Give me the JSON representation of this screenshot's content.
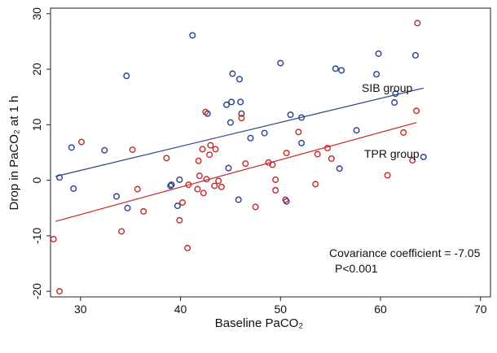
{
  "chart_data": {
    "type": "scatter",
    "xlabel": "Baseline PaCO₂",
    "ylabel": "Drop in PaCO₂ at 1 h",
    "xlim": [
      27,
      71
    ],
    "ylim": [
      -21,
      31
    ],
    "x_ticks": [
      30,
      40,
      50,
      60,
      70
    ],
    "y_ticks": [
      -20,
      -10,
      0,
      10,
      20,
      30
    ],
    "grid": false,
    "series": [
      {
        "name": "SIB group",
        "color": "#2a3f8f",
        "points": [
          [
            27.9,
            0.5
          ],
          [
            29.1,
            5.9
          ],
          [
            29.3,
            -1.5
          ],
          [
            32.4,
            5.4
          ],
          [
            33.6,
            -2.9
          ],
          [
            34.6,
            18.8
          ],
          [
            34.7,
            -5.0
          ],
          [
            39.0,
            -1.0
          ],
          [
            39.1,
            -0.8
          ],
          [
            39.7,
            -4.6
          ],
          [
            39.9,
            0.1
          ],
          [
            41.2,
            26.1
          ],
          [
            42.7,
            12.0
          ],
          [
            44.6,
            13.6
          ],
          [
            44.8,
            2.2
          ],
          [
            45.0,
            10.4
          ],
          [
            45.1,
            14.1
          ],
          [
            45.2,
            19.2
          ],
          [
            45.8,
            -3.5
          ],
          [
            45.9,
            18.2
          ],
          [
            46.0,
            14.1
          ],
          [
            46.1,
            12.0
          ],
          [
            47.0,
            7.6
          ],
          [
            48.4,
            8.5
          ],
          [
            50.0,
            21.1
          ],
          [
            50.6,
            -3.8
          ],
          [
            51.0,
            11.8
          ],
          [
            52.1,
            11.3
          ],
          [
            52.1,
            6.7
          ],
          [
            55.5,
            20.1
          ],
          [
            55.9,
            2.1
          ],
          [
            56.1,
            19.8
          ],
          [
            57.6,
            9.0
          ],
          [
            59.6,
            19.1
          ],
          [
            59.8,
            22.8
          ],
          [
            61.4,
            14.0
          ],
          [
            61.5,
            15.6
          ],
          [
            63.5,
            22.5
          ],
          [
            64.3,
            4.2
          ]
        ]
      },
      {
        "name": "TPR group",
        "color": "#c62828",
        "points": [
          [
            27.3,
            -10.6
          ],
          [
            27.9,
            -20.0
          ],
          [
            30.1,
            6.9
          ],
          [
            34.1,
            -9.2
          ],
          [
            35.2,
            5.5
          ],
          [
            35.7,
            -1.6
          ],
          [
            36.3,
            -5.6
          ],
          [
            38.6,
            4.0
          ],
          [
            39.9,
            -7.2
          ],
          [
            40.2,
            -4.0
          ],
          [
            40.7,
            -12.2
          ],
          [
            40.8,
            -0.8
          ],
          [
            41.7,
            -1.6
          ],
          [
            41.8,
            3.5
          ],
          [
            41.9,
            0.8
          ],
          [
            42.2,
            5.6
          ],
          [
            42.3,
            -2.3
          ],
          [
            42.5,
            12.3
          ],
          [
            42.6,
            0.2
          ],
          [
            42.9,
            4.6
          ],
          [
            43.0,
            6.3
          ],
          [
            43.4,
            -1.0
          ],
          [
            43.5,
            5.6
          ],
          [
            43.8,
            -0.1
          ],
          [
            44.1,
            -1.2
          ],
          [
            46.1,
            11.2
          ],
          [
            46.5,
            3.0
          ],
          [
            47.5,
            -4.8
          ],
          [
            48.8,
            3.2
          ],
          [
            49.2,
            2.8
          ],
          [
            49.5,
            -1.8
          ],
          [
            49.5,
            0.1
          ],
          [
            50.5,
            -3.5
          ],
          [
            50.6,
            4.9
          ],
          [
            51.8,
            8.7
          ],
          [
            53.5,
            -0.7
          ],
          [
            53.7,
            4.7
          ],
          [
            54.7,
            5.8
          ],
          [
            55.1,
            3.9
          ],
          [
            60.7,
            0.9
          ],
          [
            62.3,
            8.6
          ],
          [
            63.2,
            3.6
          ],
          [
            63.6,
            12.5
          ],
          [
            63.7,
            28.3
          ]
        ]
      }
    ],
    "fit_lines": [
      {
        "series": "SIB group",
        "color": "#2a3f8f",
        "x": [
          27.5,
          64.3
        ],
        "y": [
          0.7,
          16.6
        ]
      },
      {
        "series": "TPR group",
        "color": "#c62828",
        "x": [
          27.5,
          63.6
        ],
        "y": [
          -7.4,
          10.4
        ]
      }
    ],
    "labels": {
      "sib": "SIB group",
      "tpr": "TPR group",
      "covariance": "Covariance coefficient = -7.05",
      "pvalue": "P<0.001"
    }
  }
}
